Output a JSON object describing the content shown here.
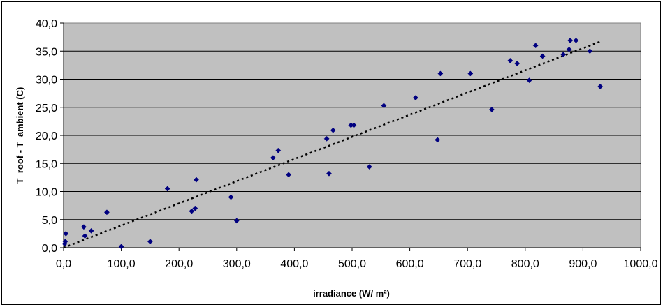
{
  "chart_data": {
    "type": "scatter",
    "title": "",
    "xlabel": "irradiance (W/ m²)",
    "ylabel": "T_roof - T_ambient (C)",
    "xlim": [
      0,
      1000
    ],
    "ylim": [
      0,
      40
    ],
    "x_ticks": [
      "0,0",
      "100,0",
      "200,0",
      "300,0",
      "400,0",
      "500,0",
      "600,0",
      "700,0",
      "800,0",
      "900,0",
      "1000,0"
    ],
    "y_ticks": [
      "0,0",
      "5,0",
      "10,0",
      "15,0",
      "20,0",
      "25,0",
      "30,0",
      "35,0",
      "40,0"
    ],
    "grid": "horizontal",
    "plot_background": "#c0c0c0",
    "marker_color": "#000080",
    "trendline": {
      "type": "linear",
      "style": "dotted",
      "x": [
        0,
        930
      ],
      "y": [
        0,
        36.7
      ]
    },
    "series": [
      {
        "points": [
          [
            2,
            0.7
          ],
          [
            3,
            1.1
          ],
          [
            4,
            2.5
          ],
          [
            35,
            3.7
          ],
          [
            37,
            2.1
          ],
          [
            48,
            3.0
          ],
          [
            75,
            6.3
          ],
          [
            100,
            0.2
          ],
          [
            150,
            1.1
          ],
          [
            180,
            10.5
          ],
          [
            222,
            6.5
          ],
          [
            228,
            7.0
          ],
          [
            230,
            12.1
          ],
          [
            290,
            9.0
          ],
          [
            300,
            4.8
          ],
          [
            363,
            16.0
          ],
          [
            372,
            17.3
          ],
          [
            390,
            13.0
          ],
          [
            456,
            19.4
          ],
          [
            460,
            13.2
          ],
          [
            467,
            20.9
          ],
          [
            498,
            21.8
          ],
          [
            503,
            21.8
          ],
          [
            530,
            14.4
          ],
          [
            555,
            25.3
          ],
          [
            610,
            26.7
          ],
          [
            648,
            19.2
          ],
          [
            653,
            31.0
          ],
          [
            705,
            31.0
          ],
          [
            742,
            24.6
          ],
          [
            774,
            33.3
          ],
          [
            786,
            32.8
          ],
          [
            807,
            29.8
          ],
          [
            818,
            36.0
          ],
          [
            830,
            34.1
          ],
          [
            866,
            34.4
          ],
          [
            876,
            35.3
          ],
          [
            878,
            36.9
          ],
          [
            888,
            36.9
          ],
          [
            912,
            35.0
          ],
          [
            930,
            28.7
          ]
        ]
      }
    ]
  }
}
